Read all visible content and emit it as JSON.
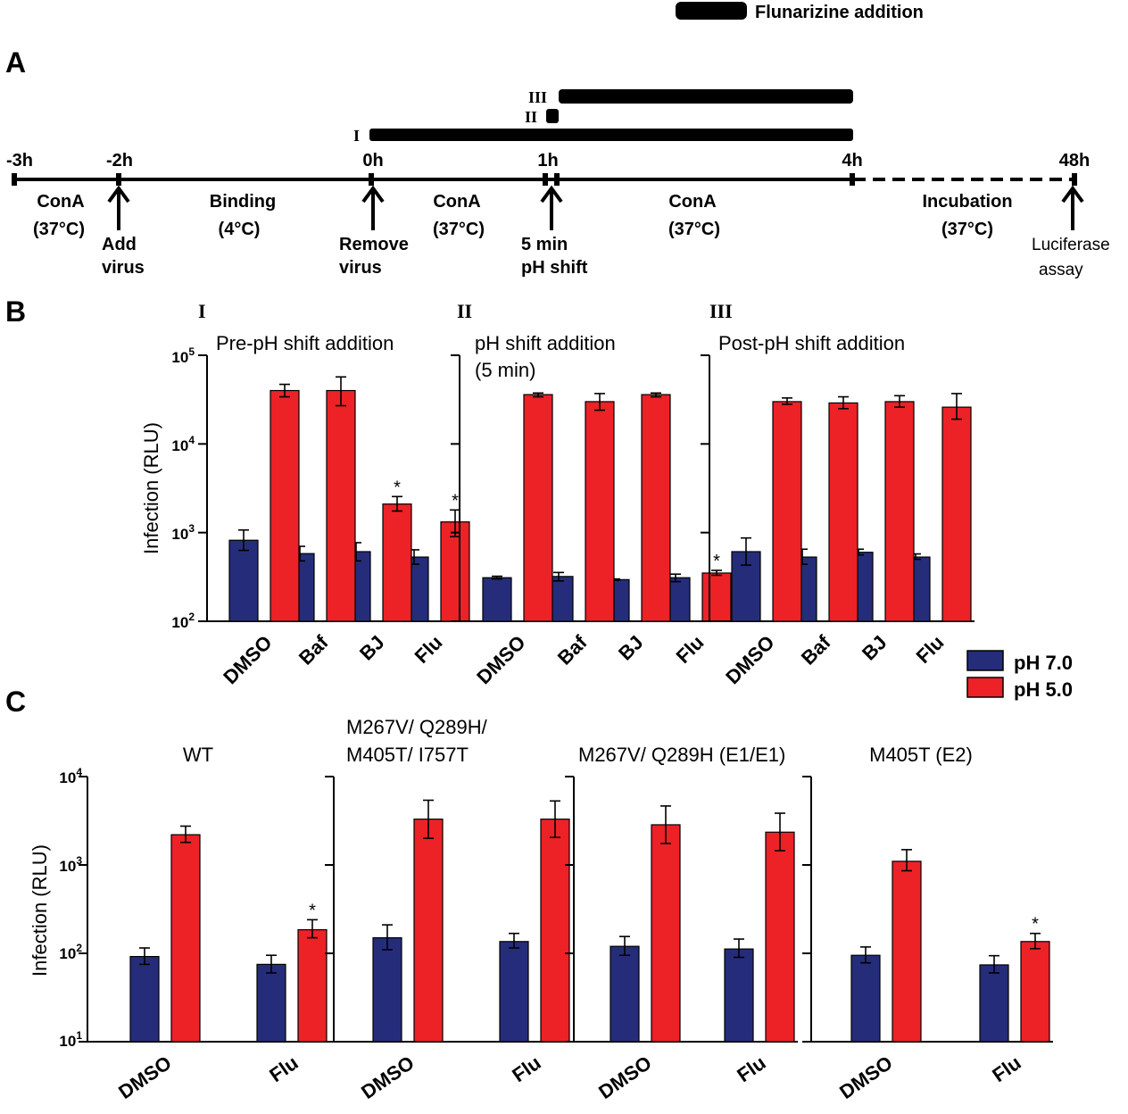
{
  "colors": {
    "ph7": "#252d7a",
    "ph5": "#ec2227",
    "ink": "#000000"
  },
  "timeline": {
    "legend_label": "Flunarizine addition",
    "panel_label": "A",
    "ticks": [
      "-3h",
      "-2h",
      "0h",
      "1h",
      "4h",
      "48h"
    ],
    "bars": [
      "I",
      "II",
      "III"
    ],
    "segments": {
      "cona1": [
        "ConA",
        "(37°C)"
      ],
      "binding": [
        "Binding",
        "(4°C)"
      ],
      "cona2": [
        "ConA",
        "(37°C)"
      ],
      "cona3": [
        "ConA",
        "(37°C)"
      ],
      "incubation": [
        "Incubation",
        "(37°C)"
      ]
    },
    "events": {
      "add_virus": [
        "Add",
        "virus"
      ],
      "remove_virus": [
        "Remove",
        "virus"
      ],
      "ph_shift": [
        "5 min",
        "pH shift"
      ],
      "luciferase": [
        "Luciferase",
        "assay"
      ]
    }
  },
  "legend": {
    "ph7": "pH 7.0",
    "ph5": "pH 5.0"
  },
  "panel_B": {
    "label": "B",
    "ylabel": "Infection (RLU)",
    "yticks": [
      "10^5",
      "10^4",
      "10^3",
      "10^2"
    ]
  },
  "panel_C": {
    "label": "C",
    "ylabel": "Infection (RLU)",
    "yticks": [
      "10^4",
      "10^3",
      "10^2",
      "10^1"
    ]
  },
  "chart_data": [
    {
      "id": "B-I",
      "type": "bar",
      "yscale": "log",
      "ylim": [
        100,
        100000
      ],
      "roman": "I",
      "title_lines": [
        "Pre-pH shift addition"
      ],
      "categories": [
        "DMSO",
        "Baf",
        "BJ",
        "Flu"
      ],
      "series": [
        {
          "name": "pH 7.0",
          "values": [
            820,
            580,
            610,
            530
          ],
          "err_low": [
            630,
            480,
            480,
            440
          ],
          "err_high": [
            1070,
            700,
            770,
            640
          ]
        },
        {
          "name": "pH 5.0",
          "values": [
            40000,
            40000,
            2100,
            1320
          ],
          "err_low": [
            34000,
            27000,
            1750,
            900
          ],
          "err_high": [
            47000,
            57000,
            2550,
            1800
          ]
        }
      ],
      "stars": [
        false,
        false,
        true,
        true
      ]
    },
    {
      "id": "B-II",
      "type": "bar",
      "yscale": "log",
      "ylim": [
        100,
        100000
      ],
      "roman": "II",
      "title_lines": [
        "pH shift addition",
        "(5 min)"
      ],
      "categories": [
        "DMSO",
        "Baf",
        "BJ",
        "Flu"
      ],
      "series": [
        {
          "name": "pH 7.0",
          "values": [
            310,
            320,
            295,
            310
          ],
          "err_low": [
            300,
            285,
            290,
            280
          ],
          "err_high": [
            322,
            355,
            300,
            340
          ]
        },
        {
          "name": "pH 5.0",
          "values": [
            36000,
            30000,
            36000,
            350
          ],
          "err_low": [
            34000,
            24000,
            34000,
            330
          ],
          "err_high": [
            37500,
            37000,
            37500,
            375
          ]
        }
      ],
      "stars": [
        false,
        false,
        false,
        true
      ]
    },
    {
      "id": "B-III",
      "type": "bar",
      "yscale": "log",
      "ylim": [
        100,
        100000
      ],
      "roman": "III",
      "title_lines": [
        "Post-pH shift addition"
      ],
      "categories": [
        "DMSO",
        "Baf",
        "BJ",
        "Flu"
      ],
      "series": [
        {
          "name": "pH 7.0",
          "values": [
            610,
            530,
            600,
            530
          ],
          "err_low": [
            430,
            440,
            560,
            500
          ],
          "err_high": [
            870,
            650,
            650,
            575
          ]
        },
        {
          "name": "pH 5.0",
          "values": [
            30000,
            29000,
            30000,
            26000
          ],
          "err_low": [
            28000,
            25000,
            26000,
            19000
          ],
          "err_high": [
            33000,
            34000,
            35000,
            37000
          ]
        }
      ],
      "stars": [
        false,
        false,
        false,
        false
      ]
    },
    {
      "id": "C-WT",
      "type": "bar",
      "yscale": "log",
      "ylim": [
        10,
        10000
      ],
      "title_lines": [
        "WT"
      ],
      "categories": [
        "DMSO",
        "Flu"
      ],
      "series": [
        {
          "name": "pH 7.0",
          "values": [
            92,
            75
          ],
          "err_low": [
            75,
            60
          ],
          "err_high": [
            115,
            95
          ]
        },
        {
          "name": "pH 5.0",
          "values": [
            2200,
            185
          ],
          "err_low": [
            1800,
            150
          ],
          "err_high": [
            2750,
            240
          ]
        }
      ],
      "stars": [
        false,
        true
      ]
    },
    {
      "id": "C-M267V/Q289H/M405T/I757T",
      "type": "bar",
      "yscale": "log",
      "ylim": [
        10,
        10000
      ],
      "title_lines": [
        "M267V/ Q289H/",
        "M405T/ I757T"
      ],
      "categories": [
        "DMSO",
        "Flu"
      ],
      "series": [
        {
          "name": "pH 7.0",
          "values": [
            150,
            136
          ],
          "err_low": [
            110,
            115
          ],
          "err_high": [
            210,
            168
          ]
        },
        {
          "name": "pH 5.0",
          "values": [
            3300,
            3300
          ],
          "err_low": [
            2000,
            2050
          ],
          "err_high": [
            5400,
            5300
          ]
        }
      ],
      "stars": [
        false,
        false
      ]
    },
    {
      "id": "C-M267V/Q289H",
      "type": "bar",
      "yscale": "log",
      "ylim": [
        10,
        10000
      ],
      "title_lines": [
        "M267V/ Q289H (E1/E1)"
      ],
      "categories": [
        "DMSO",
        "Flu"
      ],
      "series": [
        {
          "name": "pH 7.0",
          "values": [
            120,
            112
          ],
          "err_low": [
            95,
            90
          ],
          "err_high": [
            155,
            145
          ]
        },
        {
          "name": "pH 5.0",
          "values": [
            2850,
            2350
          ],
          "err_low": [
            1750,
            1450
          ],
          "err_high": [
            4650,
            3850
          ]
        }
      ],
      "stars": [
        false,
        false
      ]
    },
    {
      "id": "C-M405T",
      "type": "bar",
      "yscale": "log",
      "ylim": [
        10,
        10000
      ],
      "title_lines": [
        "M405T (E2)"
      ],
      "categories": [
        "DMSO",
        "Flu"
      ],
      "series": [
        {
          "name": "pH 7.0",
          "values": [
            95,
            74
          ],
          "err_low": [
            78,
            60
          ],
          "err_high": [
            118,
            94
          ]
        },
        {
          "name": "pH 5.0",
          "values": [
            1100,
            136
          ],
          "err_low": [
            860,
            113
          ],
          "err_high": [
            1490,
            168
          ]
        }
      ],
      "stars": [
        false,
        true
      ]
    }
  ]
}
